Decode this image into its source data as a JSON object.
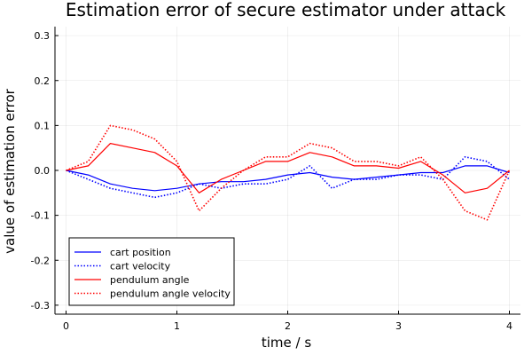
{
  "chart_data": {
    "type": "line",
    "title": "Estimation error of secure estimator under attack",
    "xlabel": "time / s",
    "ylabel": "value of estimation error",
    "xlim": [
      -0.1,
      4.1
    ],
    "ylim": [
      -0.32,
      0.32
    ],
    "xticks": [
      0,
      1,
      2,
      3,
      4
    ],
    "xtick_labels": [
      "0",
      "1",
      "2",
      "3",
      "4"
    ],
    "yticks": [
      -0.3,
      -0.2,
      -0.1,
      0.0,
      0.1,
      0.2,
      0.3
    ],
    "ytick_labels": [
      "-0.3",
      "-0.2",
      "-0.1",
      "0.0",
      "0.1",
      "0.2",
      "0.3"
    ],
    "grid": true,
    "legend_position": "bottom-left",
    "series": [
      {
        "name": "cart position",
        "color": "#0000ff",
        "style": "solid",
        "x": [
          0,
          0.2,
          0.4,
          0.6,
          0.8,
          1.0,
          1.2,
          1.4,
          1.6,
          1.8,
          2.0,
          2.2,
          2.4,
          2.6,
          2.8,
          3.0,
          3.2,
          3.4,
          3.6,
          3.8,
          4.0
        ],
        "y": [
          0.0,
          -0.01,
          -0.03,
          -0.04,
          -0.045,
          -0.04,
          -0.03,
          -0.025,
          -0.025,
          -0.02,
          -0.01,
          -0.005,
          -0.015,
          -0.02,
          -0.015,
          -0.01,
          -0.005,
          -0.005,
          0.01,
          0.01,
          -0.005
        ]
      },
      {
        "name": "cart velocity",
        "color": "#0000ff",
        "style": "dotted",
        "x": [
          0,
          0.2,
          0.4,
          0.6,
          0.8,
          1.0,
          1.2,
          1.4,
          1.6,
          1.8,
          2.0,
          2.2,
          2.4,
          2.6,
          2.8,
          3.0,
          3.2,
          3.4,
          3.6,
          3.8,
          4.0
        ],
        "y": [
          0.0,
          -0.02,
          -0.04,
          -0.05,
          -0.06,
          -0.05,
          -0.03,
          -0.04,
          -0.03,
          -0.03,
          -0.02,
          0.01,
          -0.04,
          -0.02,
          -0.02,
          -0.01,
          -0.01,
          -0.02,
          0.03,
          0.02,
          -0.02
        ]
      },
      {
        "name": "pendulum angle",
        "color": "#ff0000",
        "style": "solid",
        "x": [
          0,
          0.2,
          0.4,
          0.6,
          0.8,
          1.0,
          1.2,
          1.4,
          1.6,
          1.8,
          2.0,
          2.2,
          2.4,
          2.6,
          2.8,
          3.0,
          3.2,
          3.4,
          3.6,
          3.8,
          4.0
        ],
        "y": [
          0.0,
          0.01,
          0.06,
          0.05,
          0.04,
          0.01,
          -0.05,
          -0.02,
          0.0,
          0.02,
          0.02,
          0.04,
          0.03,
          0.01,
          0.01,
          0.005,
          0.02,
          -0.01,
          -0.05,
          -0.04,
          0.0
        ]
      },
      {
        "name": "pendulum angle velocity",
        "color": "#ff0000",
        "style": "dotted",
        "x": [
          0,
          0.2,
          0.4,
          0.6,
          0.8,
          1.0,
          1.2,
          1.4,
          1.6,
          1.8,
          2.0,
          2.2,
          2.4,
          2.6,
          2.8,
          3.0,
          3.2,
          3.4,
          3.6,
          3.8,
          4.0
        ],
        "y": [
          0.0,
          0.02,
          0.1,
          0.09,
          0.07,
          0.02,
          -0.09,
          -0.04,
          0.0,
          0.03,
          0.03,
          0.06,
          0.05,
          0.02,
          0.02,
          0.01,
          0.03,
          -0.02,
          -0.09,
          -0.11,
          0.0
        ]
      }
    ]
  }
}
